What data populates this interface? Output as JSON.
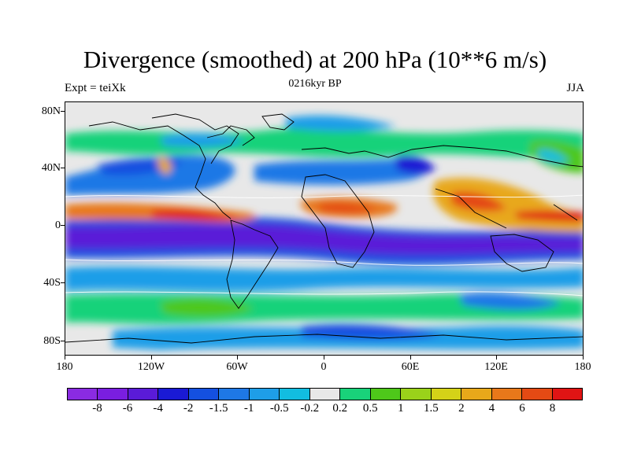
{
  "header": {
    "title": "Divergence (smoothed) at 200 hPa (10**6 m/s)",
    "left": "Expt = teiXk",
    "center": "0216kyr BP",
    "right": "JJA"
  },
  "axes": {
    "lat_ticks": [
      "80N",
      "40N",
      "0",
      "40S",
      "80S"
    ],
    "lon_ticks": [
      "180",
      "120W",
      "60W",
      "0",
      "60E",
      "120E",
      "180"
    ]
  },
  "colorbar": {
    "colors": [
      "#8a2be2",
      "#7a1ee0",
      "#5a1bd8",
      "#1a1ad4",
      "#1450e0",
      "#1e78e6",
      "#1e9ee8",
      "#12bde0",
      "#e8e8e8",
      "#19d27a",
      "#4ec81a",
      "#9ad21a",
      "#d4d218",
      "#e8a81a",
      "#e8781a",
      "#e44a14",
      "#e01414"
    ],
    "labels": [
      "-8",
      "-6",
      "-4",
      "-2",
      "-1.5",
      "-1",
      "-0.5",
      "-0.2",
      "0.2",
      "0.5",
      "1",
      "1.5",
      "2",
      "4",
      "6",
      "8"
    ]
  },
  "palette": {
    "ocean_neutral": "#e8e8e8",
    "coast": "#000000"
  }
}
